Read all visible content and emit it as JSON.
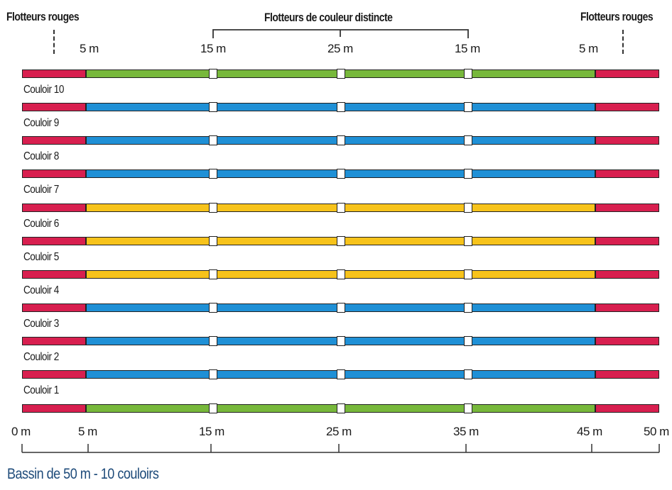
{
  "header": {
    "left_label": "Flotteurs rouges",
    "center_label": "Flotteurs de couleur distincte",
    "right_label": "Flotteurs rouges",
    "top_marks": [
      "5 m",
      "15 m",
      "25 m",
      "15 m",
      "5 m"
    ]
  },
  "lanes": [
    {
      "label": "Couloir 10",
      "color": "#77b83b"
    },
    {
      "label": "Couloir 9",
      "color": "#1f90d6"
    },
    {
      "label": "Couloir 8",
      "color": "#1f90d6"
    },
    {
      "label": "Couloir 7",
      "color": "#1f90d6"
    },
    {
      "label": "Couloir 6",
      "color": "#f7c31b"
    },
    {
      "label": "Couloir 5",
      "color": "#f7c31b"
    },
    {
      "label": "Couloir 4",
      "color": "#f7c31b"
    },
    {
      "label": "Couloir 3",
      "color": "#1f90d6"
    },
    {
      "label": "Couloir 2",
      "color": "#1f90d6"
    },
    {
      "label": "Couloir 1",
      "color": "#1f90d6"
    },
    {
      "label": "",
      "color": "#77b83b"
    }
  ],
  "rope_end_color": "#d81f4f",
  "scale": {
    "marks": [
      "0 m",
      "5 m",
      "15 m",
      "25 m",
      "35 m",
      "45 m",
      "50 m"
    ],
    "values_m": [
      0,
      5,
      15,
      25,
      35,
      45,
      50
    ]
  },
  "buoys_at_m": [
    15,
    25,
    35
  ],
  "title": "Bassin de 50 m - 10 couloirs"
}
